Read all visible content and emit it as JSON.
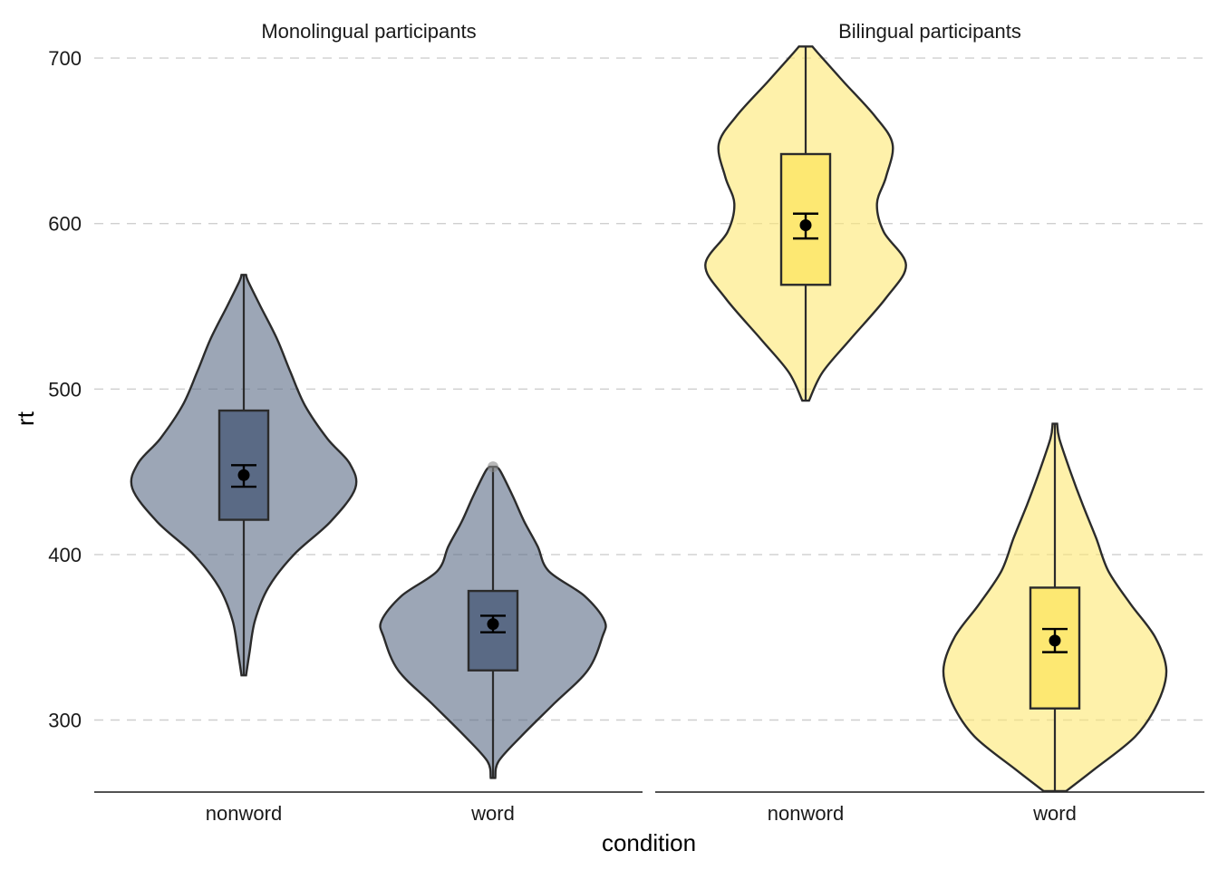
{
  "chart_data": {
    "type": "violin",
    "ylabel": "rt",
    "xlabel": "condition",
    "ylim": [
      257,
      707
    ],
    "y_ticks": [
      300,
      400,
      500,
      600,
      700
    ],
    "grid": "horizontal-dashed",
    "facets": [
      {
        "title": "Monolingual participants",
        "fill": "#5a6a85",
        "categories": [
          "nonword",
          "word"
        ],
        "groups": [
          {
            "condition": "nonword",
            "min": 327,
            "q1": 421,
            "median": 421,
            "q3": 487,
            "max": 569,
            "mean": 448,
            "ci": [
              441,
              454
            ],
            "outliers": [],
            "density": [
              [
                327,
                0.02
              ],
              [
                340,
                0.05
              ],
              [
                360,
                0.1
              ],
              [
                380,
                0.22
              ],
              [
                400,
                0.45
              ],
              [
                420,
                0.78
              ],
              [
                440,
                1.0
              ],
              [
                455,
                0.95
              ],
              [
                470,
                0.75
              ],
              [
                490,
                0.55
              ],
              [
                510,
                0.42
              ],
              [
                530,
                0.3
              ],
              [
                550,
                0.15
              ],
              [
                565,
                0.04
              ],
              [
                569,
                0.02
              ]
            ]
          },
          {
            "condition": "word",
            "min": 265,
            "q1": 330,
            "median": 330,
            "q3": 378,
            "max": 453,
            "mean": 358,
            "ci": [
              353,
              363
            ],
            "outliers": [
              453
            ],
            "density": [
              [
                265,
                0.02
              ],
              [
                275,
                0.05
              ],
              [
                290,
                0.25
              ],
              [
                310,
                0.55
              ],
              [
                330,
                0.85
              ],
              [
                350,
                0.98
              ],
              [
                360,
                1.0
              ],
              [
                375,
                0.82
              ],
              [
                390,
                0.5
              ],
              [
                405,
                0.4
              ],
              [
                420,
                0.28
              ],
              [
                435,
                0.18
              ],
              [
                450,
                0.07
              ],
              [
                453,
                0.03
              ]
            ]
          }
        ]
      },
      {
        "title": "Bilingual participants",
        "fill": "#fde872",
        "categories": [
          "nonword",
          "word"
        ],
        "groups": [
          {
            "condition": "nonword",
            "min": 493,
            "q1": 563,
            "median": 563,
            "q3": 642,
            "max": 707,
            "mean": 599,
            "ci": [
              591,
              606
            ],
            "outliers": [],
            "density": [
              [
                493,
                0.03
              ],
              [
                510,
                0.15
              ],
              [
                530,
                0.4
              ],
              [
                555,
                0.72
              ],
              [
                575,
                0.9
              ],
              [
                595,
                0.7
              ],
              [
                612,
                0.64
              ],
              [
                628,
                0.72
              ],
              [
                648,
                0.78
              ],
              [
                665,
                0.62
              ],
              [
                685,
                0.35
              ],
              [
                700,
                0.15
              ],
              [
                707,
                0.06
              ]
            ]
          },
          {
            "condition": "word",
            "min": 257,
            "q1": 307,
            "median": 307,
            "q3": 380,
            "max": 479,
            "mean": 348,
            "ci": [
              341,
              355
            ],
            "outliers": [],
            "density": [
              [
                257,
                0.1
              ],
              [
                270,
                0.35
              ],
              [
                290,
                0.72
              ],
              [
                310,
                0.92
              ],
              [
                330,
                1.0
              ],
              [
                350,
                0.9
              ],
              [
                370,
                0.68
              ],
              [
                390,
                0.48
              ],
              [
                410,
                0.37
              ],
              [
                430,
                0.25
              ],
              [
                450,
                0.14
              ],
              [
                470,
                0.04
              ],
              [
                479,
                0.02
              ]
            ]
          }
        ]
      }
    ]
  }
}
